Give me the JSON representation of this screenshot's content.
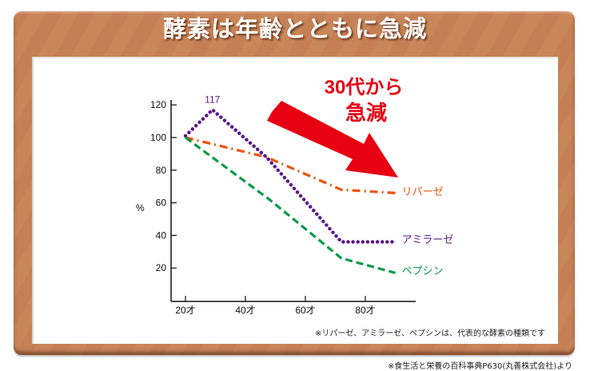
{
  "title": "酵素は年齢とともに急減",
  "annotation": {
    "line1": "30代から",
    "line2": "急減",
    "color": "#e60012"
  },
  "footnote": "※リパーゼ、アミラーゼ、ペプシンは、代表的な酵素の種類です",
  "source": "※食生活と栄養の百科事典P630(丸善株式会社)より",
  "peak_label": "117",
  "chart_data": {
    "type": "line",
    "title": "酵素は年齢とともに急減",
    "xlabel": "",
    "ylabel": "%",
    "x_ticks": [
      "20才",
      "40才",
      "60才",
      "80才"
    ],
    "y_ticks": [
      20,
      40,
      60,
      80,
      100,
      120
    ],
    "ylim": [
      0,
      125
    ],
    "xlim": [
      15,
      100
    ],
    "grid": false,
    "legend_position": "inline-right",
    "series": [
      {
        "name": "リパーゼ",
        "color": "#e8540e",
        "style": "dash-dot",
        "x": [
          20,
          47,
          72,
          90
        ],
        "values": [
          100,
          88,
          68,
          66
        ]
      },
      {
        "name": "アミラーゼ",
        "color": "#5b1a8c",
        "style": "dotted",
        "x": [
          20,
          29,
          47,
          72,
          90
        ],
        "values": [
          101,
          117,
          88,
          36,
          36
        ]
      },
      {
        "name": "ペプシン",
        "color": "#0a9a4a",
        "style": "dashed",
        "x": [
          20,
          48,
          72,
          90
        ],
        "values": [
          100,
          62,
          26,
          17
        ]
      }
    ],
    "annotations": [
      "117",
      "30代から 急減"
    ]
  }
}
